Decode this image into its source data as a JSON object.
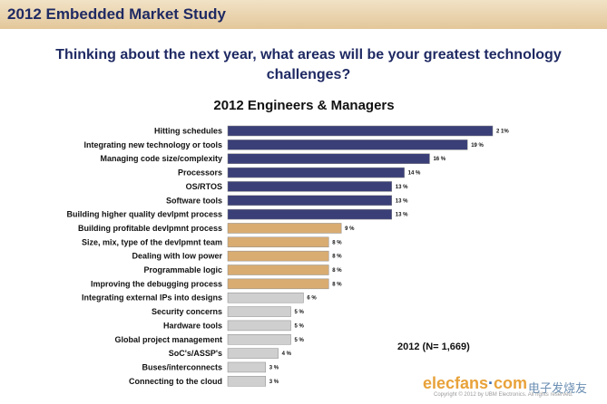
{
  "header": {
    "title": "2012 Embedded Market Study"
  },
  "chart_data": {
    "type": "bar",
    "orientation": "horizontal",
    "question": "Thinking about the next year, what areas will be your greatest technology challenges?",
    "title": "2012 Engineers & Managers",
    "sample_label": "2012 (N= 1,669)",
    "categories": [
      "Hitting schedules",
      "Integrating new technology or tools",
      "Managing code size/complexity",
      "Processors",
      "OS/RTOS",
      "Software tools",
      "Building higher quality devlpmt process",
      "Building profitable devlpmnt process",
      "Size, mix, type of the devlpmnt team",
      "Dealing with low power",
      "Programmable logic",
      "Improving the debugging process",
      "Integrating external IPs into designs",
      "Security concerns",
      "Hardware tools",
      "Global project management",
      "SoC's/ASSP's",
      "Buses/interconnects",
      "Connecting to the cloud"
    ],
    "values": [
      21,
      19,
      16,
      14,
      13,
      13,
      13,
      9,
      8,
      8,
      8,
      8,
      6,
      5,
      5,
      5,
      4,
      3,
      3
    ],
    "value_labels": [
      "2 1%",
      "19 %",
      "16 %",
      "14 %",
      "13 %",
      "13 %",
      "13 %",
      "9 %",
      "8 %",
      "8 %",
      "8 %",
      "8 %",
      "6 %",
      "5 %",
      "5 %",
      "5 %",
      "4 %",
      "3 %",
      "3 %"
    ],
    "groups": [
      "top",
      "top",
      "top",
      "top",
      "top",
      "top",
      "top",
      "middle",
      "middle",
      "middle",
      "middle",
      "middle",
      "bottom",
      "bottom",
      "bottom",
      "bottom",
      "bottom",
      "bottom",
      "bottom"
    ],
    "colors": {
      "top": "#3a3f78",
      "middle": "#d9ac72",
      "bottom": "#cfcfcf"
    },
    "xlim": [
      0,
      21
    ]
  },
  "watermark": {
    "brand": "elecfans",
    "dot": "·",
    "domain": "com",
    "cn": "电子发烧友",
    "copyright": "Copyright © 2012 by UBM Electronics. All rights reserved."
  }
}
